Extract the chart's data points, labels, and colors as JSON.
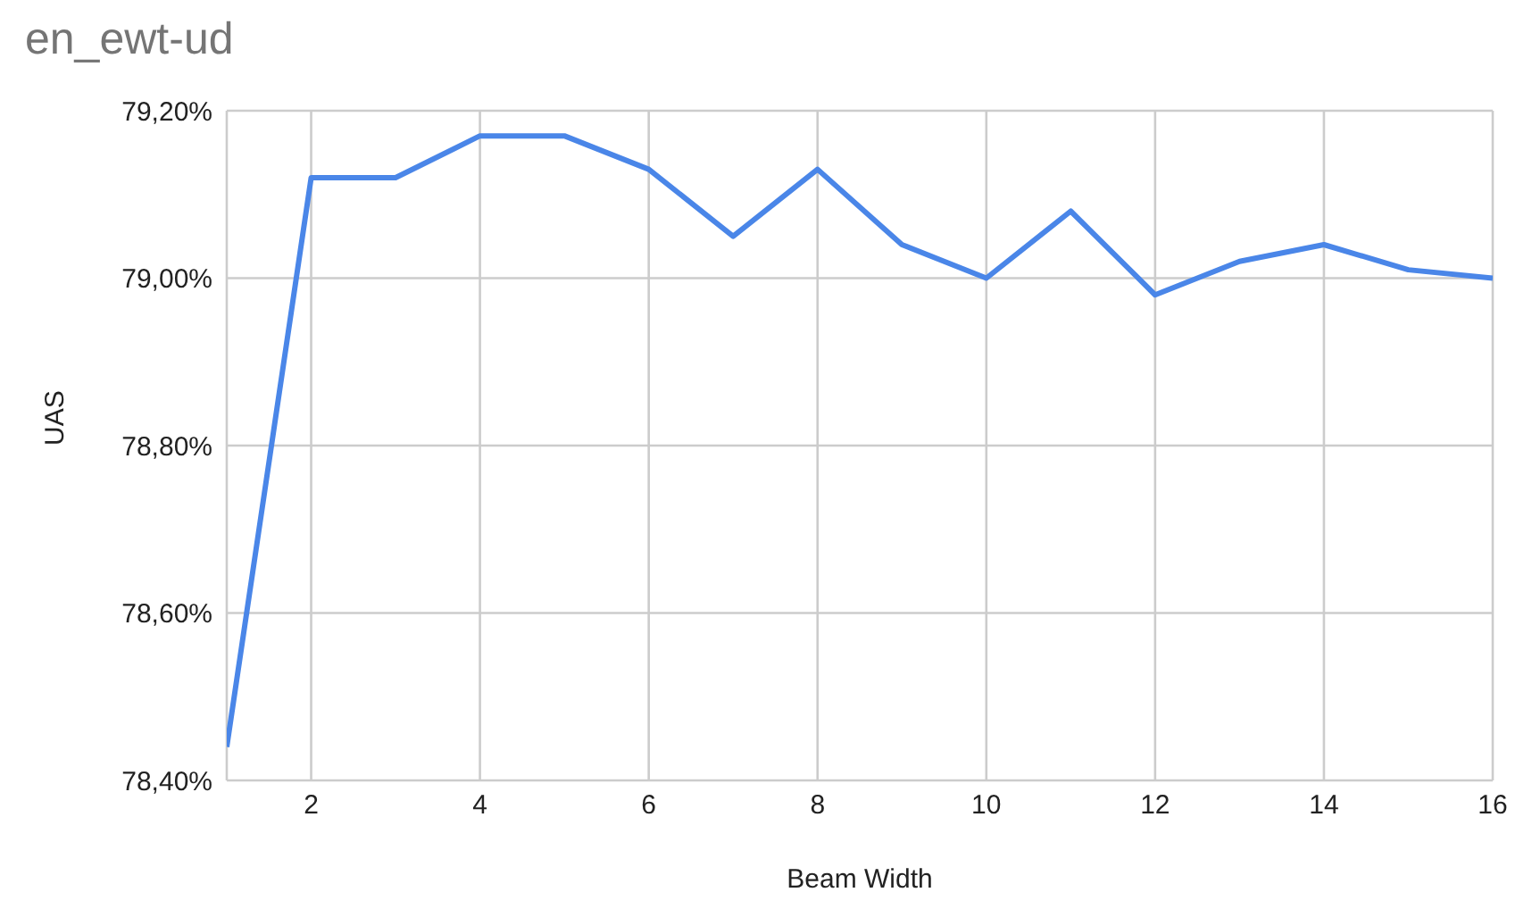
{
  "chart_data": {
    "type": "line",
    "title": "en_ewt-ud",
    "xlabel": "Beam Width",
    "ylabel": "UAS",
    "x": [
      1,
      2,
      3,
      4,
      5,
      6,
      7,
      8,
      9,
      10,
      11,
      12,
      13,
      14,
      15,
      16
    ],
    "series": [
      {
        "color": "#4a86e8",
        "values": [
          78.44,
          79.12,
          79.12,
          79.17,
          79.17,
          79.13,
          79.05,
          79.13,
          79.04,
          79.0,
          79.08,
          78.98,
          79.02,
          79.04,
          79.01,
          79.0
        ]
      }
    ],
    "xlim": [
      1,
      16
    ],
    "xticks": [
      2,
      4,
      6,
      8,
      10,
      12,
      14,
      16
    ],
    "ylim": [
      78.4,
      79.2
    ],
    "yticks": [
      {
        "value": 78.4,
        "label": "78,40%"
      },
      {
        "value": 78.6,
        "label": "78,60%"
      },
      {
        "value": 78.8,
        "label": "78,80%"
      },
      {
        "value": 79.0,
        "label": "79,00%"
      },
      {
        "value": 79.2,
        "label": "79,20%"
      }
    ],
    "grid": true,
    "legend": false,
    "marker": "none",
    "line_style": "solid"
  }
}
